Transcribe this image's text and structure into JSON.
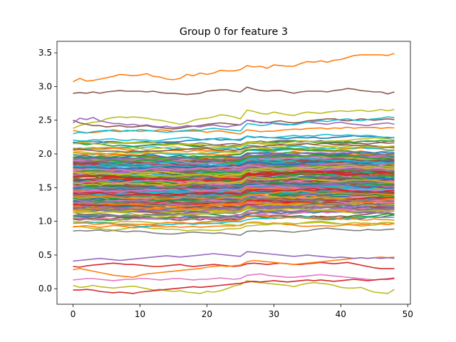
{
  "chart_data": {
    "type": "line",
    "title": "Group 0 for feature 3",
    "xlabel": "",
    "ylabel": "",
    "xlim": [
      -2.4,
      50.4
    ],
    "ylim": [
      -0.23,
      3.67
    ],
    "xticks": [
      0,
      10,
      20,
      30,
      40,
      50
    ],
    "yticks": [
      0.0,
      0.5,
      1.0,
      1.5,
      2.0,
      2.5,
      3.0,
      3.5
    ],
    "xtick_labels": [
      "0",
      "10",
      "20",
      "30",
      "40",
      "50"
    ],
    "ytick_labels": [
      "0.0",
      "0.5",
      "1.0",
      "1.5",
      "2.0",
      "2.5",
      "3.0",
      "3.5"
    ],
    "grid": false,
    "legend": "none",
    "n_points": 49,
    "palette": [
      "#1f77b4",
      "#ff7f0e",
      "#2ca02c",
      "#d62728",
      "#9467bd",
      "#8c564b",
      "#e377c2",
      "#7f7f7f",
      "#bcbd22",
      "#17becf"
    ],
    "series": [
      {
        "color": "#ff7f0e",
        "values": [
          3.07,
          3.12,
          3.08,
          3.09,
          3.11,
          3.13,
          3.15,
          3.18,
          3.17,
          3.16,
          3.17,
          3.19,
          3.15,
          3.14,
          3.11,
          3.1,
          3.12,
          3.18,
          3.16,
          3.2,
          3.18,
          3.2,
          3.24,
          3.23,
          3.23,
          3.25,
          3.31,
          3.29,
          3.3,
          3.27,
          3.32,
          3.31,
          3.3,
          3.3,
          3.34,
          3.37,
          3.36,
          3.38,
          3.36,
          3.39,
          3.4,
          3.43,
          3.46,
          3.47,
          3.47,
          3.47,
          3.47,
          3.46,
          3.49
        ]
      },
      {
        "color": "#8c564b",
        "values": [
          2.9,
          2.91,
          2.9,
          2.92,
          2.9,
          2.92,
          2.93,
          2.94,
          2.93,
          2.93,
          2.93,
          2.92,
          2.93,
          2.91,
          2.9,
          2.9,
          2.89,
          2.88,
          2.89,
          2.9,
          2.93,
          2.94,
          2.95,
          2.95,
          2.93,
          2.92,
          2.99,
          2.96,
          2.94,
          2.93,
          2.94,
          2.94,
          2.92,
          2.9,
          2.92,
          2.93,
          2.93,
          2.93,
          2.92,
          2.94,
          2.95,
          2.97,
          2.96,
          2.94,
          2.93,
          2.92,
          2.92,
          2.89,
          2.92
        ]
      },
      {
        "color": "#bcbd22",
        "values": [
          2.38,
          2.42,
          2.45,
          2.47,
          2.48,
          2.52,
          2.54,
          2.55,
          2.54,
          2.55,
          2.54,
          2.53,
          2.51,
          2.5,
          2.48,
          2.46,
          2.44,
          2.46,
          2.5,
          2.52,
          2.53,
          2.55,
          2.58,
          2.57,
          2.55,
          2.52,
          2.65,
          2.63,
          2.6,
          2.59,
          2.62,
          2.6,
          2.58,
          2.57,
          2.6,
          2.62,
          2.61,
          2.6,
          2.62,
          2.63,
          2.64,
          2.63,
          2.64,
          2.65,
          2.63,
          2.64,
          2.66,
          2.64,
          2.66
        ]
      },
      {
        "color": "#8c564b",
        "values": [
          2.5,
          2.46,
          2.44,
          2.42,
          2.42,
          2.4,
          2.41,
          2.42,
          2.4,
          2.4,
          2.41,
          2.42,
          2.4,
          2.39,
          2.38,
          2.37,
          2.38,
          2.4,
          2.41,
          2.42,
          2.44,
          2.45,
          2.46,
          2.45,
          2.44,
          2.43,
          2.5,
          2.48,
          2.47,
          2.46,
          2.48,
          2.49,
          2.47,
          2.46,
          2.47,
          2.49,
          2.5,
          2.51,
          2.52,
          2.52,
          2.5,
          2.49,
          2.5,
          2.52,
          2.51,
          2.5,
          2.51,
          2.52,
          2.51
        ]
      },
      {
        "color": "#9467bd",
        "values": [
          2.46,
          2.53,
          2.51,
          2.54,
          2.49,
          2.47,
          2.45,
          2.45,
          2.43,
          2.44,
          2.42,
          2.43,
          2.41,
          2.4,
          2.41,
          2.39,
          2.4,
          2.42,
          2.41,
          2.4,
          2.42,
          2.43,
          2.41,
          2.4,
          2.42,
          2.43,
          2.5,
          2.49,
          2.46,
          2.47,
          2.45,
          2.44,
          2.43,
          2.44,
          2.46,
          2.47,
          2.46,
          2.45,
          2.44,
          2.46,
          2.47,
          2.45,
          2.44,
          2.43,
          2.42,
          2.44,
          2.45,
          2.46,
          2.44
        ]
      },
      {
        "color": "#17becf",
        "values": [
          2.3,
          2.32,
          2.31,
          2.33,
          2.34,
          2.35,
          2.34,
          2.33,
          2.35,
          2.34,
          2.36,
          2.35,
          2.34,
          2.33,
          2.32,
          2.33,
          2.34,
          2.35,
          2.36,
          2.35,
          2.37,
          2.38,
          2.37,
          2.36,
          2.35,
          2.34,
          2.45,
          2.44,
          2.42,
          2.43,
          2.46,
          2.45,
          2.44,
          2.43,
          2.45,
          2.47,
          2.48,
          2.49,
          2.48,
          2.5,
          2.51,
          2.52,
          2.5,
          2.49,
          2.51,
          2.52,
          2.53,
          2.55,
          2.54
        ]
      },
      {
        "color": "#d62728",
        "values": [
          0.33,
          0.32,
          0.34,
          0.35,
          0.36,
          0.37,
          0.38,
          0.37,
          0.36,
          0.36,
          0.35,
          0.34,
          0.33,
          0.33,
          0.34,
          0.35,
          0.36,
          0.34,
          0.33,
          0.34,
          0.35,
          0.36,
          0.35,
          0.34,
          0.33,
          0.34,
          0.37,
          0.38,
          0.37,
          0.36,
          0.37,
          0.38,
          0.37,
          0.36,
          0.36,
          0.37,
          0.38,
          0.39,
          0.38,
          0.37,
          0.38,
          0.39,
          0.37,
          0.35,
          0.33,
          0.31,
          0.3,
          0.3,
          0.3
        ]
      },
      {
        "color": "#e377c2",
        "values": [
          0.13,
          0.14,
          0.15,
          0.15,
          0.14,
          0.13,
          0.12,
          0.13,
          0.14,
          0.14,
          0.15,
          0.15,
          0.14,
          0.13,
          0.14,
          0.15,
          0.15,
          0.14,
          0.13,
          0.14,
          0.14,
          0.15,
          0.16,
          0.15,
          0.14,
          0.15,
          0.2,
          0.21,
          0.22,
          0.2,
          0.19,
          0.18,
          0.17,
          0.17,
          0.18,
          0.19,
          0.2,
          0.21,
          0.2,
          0.19,
          0.18,
          0.17,
          0.16,
          0.15,
          0.14,
          0.13,
          0.14,
          0.15,
          0.16
        ]
      },
      {
        "color": "#bcbd22",
        "values": [
          0.05,
          0.02,
          0.03,
          0.05,
          0.03,
          0.02,
          0.01,
          0.02,
          0.03,
          0.04,
          0.02,
          0.0,
          -0.02,
          -0.01,
          -0.03,
          -0.04,
          -0.03,
          -0.05,
          -0.06,
          -0.07,
          -0.04,
          -0.05,
          -0.03,
          0.0,
          0.04,
          0.06,
          0.12,
          0.1,
          0.09,
          0.08,
          0.07,
          0.06,
          0.05,
          0.03,
          0.06,
          0.08,
          0.09,
          0.08,
          0.07,
          0.05,
          0.02,
          0.01,
          0.01,
          0.02,
          -0.02,
          -0.05,
          -0.06,
          -0.07,
          -0.01
        ]
      },
      {
        "color": "#d62728",
        "values": [
          -0.02,
          -0.02,
          -0.01,
          -0.02,
          -0.04,
          -0.05,
          -0.06,
          -0.05,
          -0.06,
          -0.07,
          -0.05,
          -0.04,
          -0.03,
          -0.02,
          -0.01,
          0.0,
          0.01,
          0.02,
          0.03,
          0.02,
          0.03,
          0.04,
          0.05,
          0.06,
          0.07,
          0.08,
          0.1,
          0.11,
          0.1,
          0.11,
          0.12,
          0.11,
          0.1,
          0.11,
          0.12,
          0.13,
          0.12,
          0.13,
          0.12,
          0.11,
          0.12,
          0.13,
          0.14,
          0.13,
          0.12,
          0.13,
          0.14,
          0.14,
          0.15
        ]
      },
      {
        "color": "#ff7f0e",
        "values": [
          0.28,
          0.3,
          0.28,
          0.26,
          0.24,
          0.22,
          0.2,
          0.19,
          0.18,
          0.17,
          0.2,
          0.22,
          0.23,
          0.24,
          0.25,
          0.26,
          0.27,
          0.28,
          0.29,
          0.3,
          0.32,
          0.33,
          0.34,
          0.33,
          0.34,
          0.35,
          0.4,
          0.42,
          0.41,
          0.4,
          0.39,
          0.38,
          0.37,
          0.36,
          0.37,
          0.38,
          0.39,
          0.4,
          0.41,
          0.42,
          0.43,
          0.44,
          0.45,
          0.46,
          0.45,
          0.46,
          0.47,
          0.46,
          0.47
        ]
      },
      {
        "color": "#9467bd",
        "values": [
          0.41,
          0.42,
          0.43,
          0.44,
          0.45,
          0.44,
          0.43,
          0.42,
          0.43,
          0.44,
          0.45,
          0.46,
          0.47,
          0.48,
          0.49,
          0.48,
          0.47,
          0.48,
          0.49,
          0.5,
          0.51,
          0.52,
          0.51,
          0.5,
          0.49,
          0.48,
          0.55,
          0.54,
          0.53,
          0.52,
          0.51,
          0.5,
          0.49,
          0.48,
          0.49,
          0.5,
          0.49,
          0.48,
          0.47,
          0.46,
          0.47,
          0.46,
          0.45,
          0.46,
          0.45,
          0.46,
          0.45,
          0.46,
          0.45
        ]
      }
    ],
    "band": {
      "count": 280,
      "center": 1.55,
      "spread": 0.5,
      "jump_index": 26,
      "jump_size": 0.05,
      "step_noise": 0.02,
      "seed": 7
    }
  }
}
